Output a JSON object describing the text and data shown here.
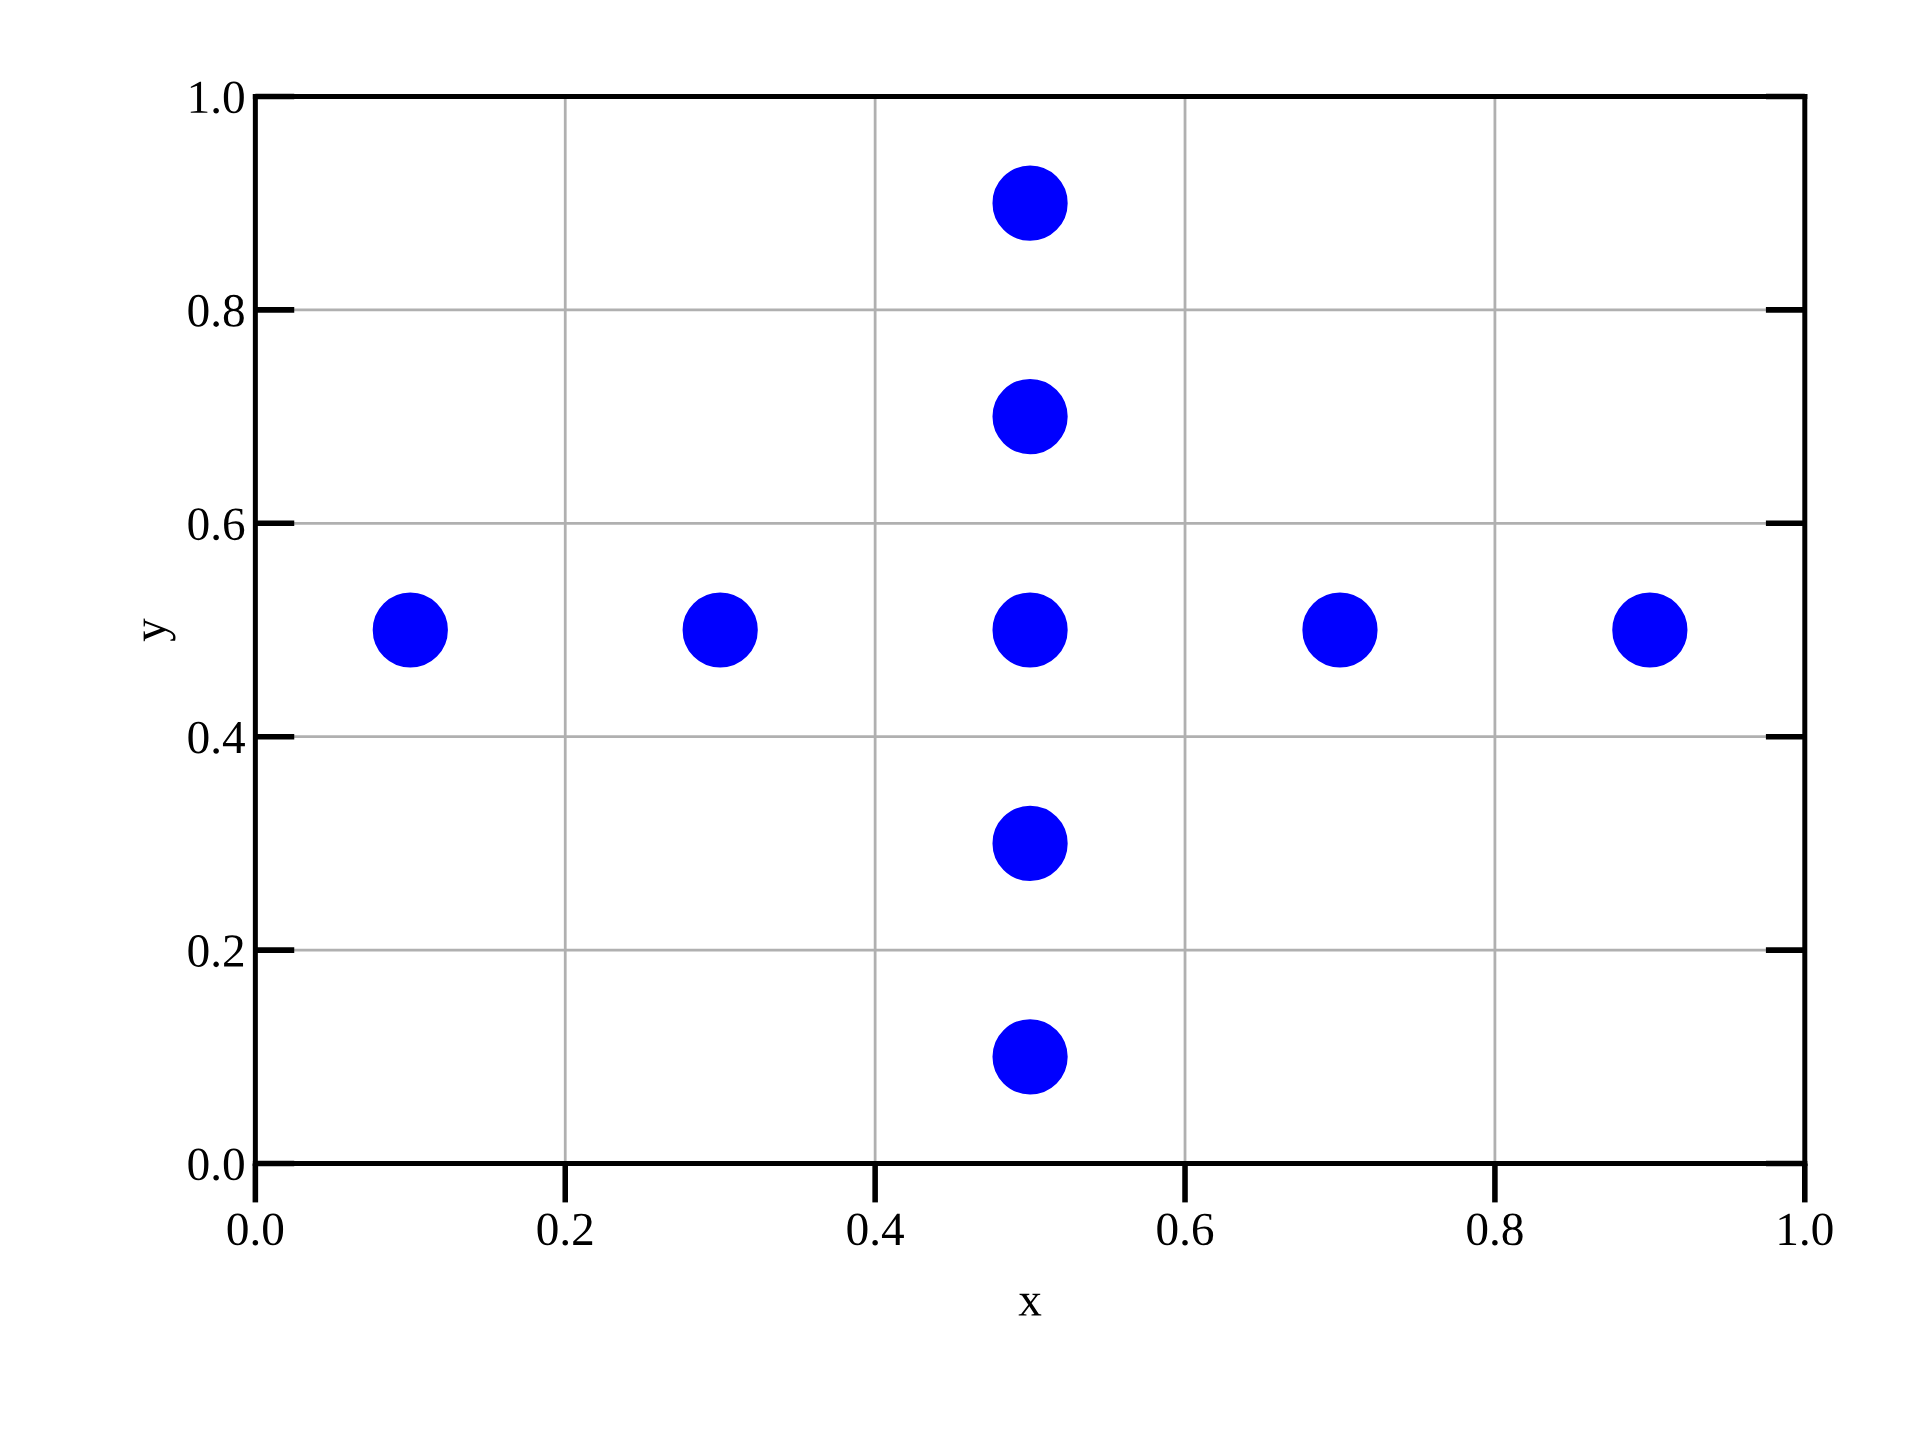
{
  "chart_data": {
    "type": "scatter",
    "xlabel": "x",
    "ylabel": "y",
    "x": [
      0.1,
      0.3,
      0.5,
      0.7,
      0.9,
      0.5,
      0.5,
      0.5,
      0.5
    ],
    "series": [
      {
        "color": "#0000ff",
        "values": [
          0.5,
          0.5,
          0.5,
          0.5,
          0.5,
          0.1,
          0.3,
          0.7,
          0.9
        ]
      }
    ],
    "xlim": [
      0.0,
      1.0
    ],
    "ylim": [
      0.0,
      1.0
    ],
    "xticks": [
      {
        "value": 0,
        "label": "0.0"
      },
      {
        "value": 0.2,
        "label": "0.2"
      },
      {
        "value": 0.4,
        "label": "0.4"
      },
      {
        "value": 0.6,
        "label": "0.6"
      },
      {
        "value": 0.8,
        "label": "0.8"
      },
      {
        "value": 1,
        "label": "1.0"
      }
    ],
    "yticks": [
      {
        "value": 0,
        "label": "0.0"
      },
      {
        "value": 0.2,
        "label": "0.2"
      },
      {
        "value": 0.4,
        "label": "0.4"
      },
      {
        "value": 0.6,
        "label": "0.6"
      },
      {
        "value": 0.8,
        "label": "0.8"
      },
      {
        "value": 1,
        "label": "1.0"
      }
    ],
    "grid": true,
    "marker": "circle"
  }
}
